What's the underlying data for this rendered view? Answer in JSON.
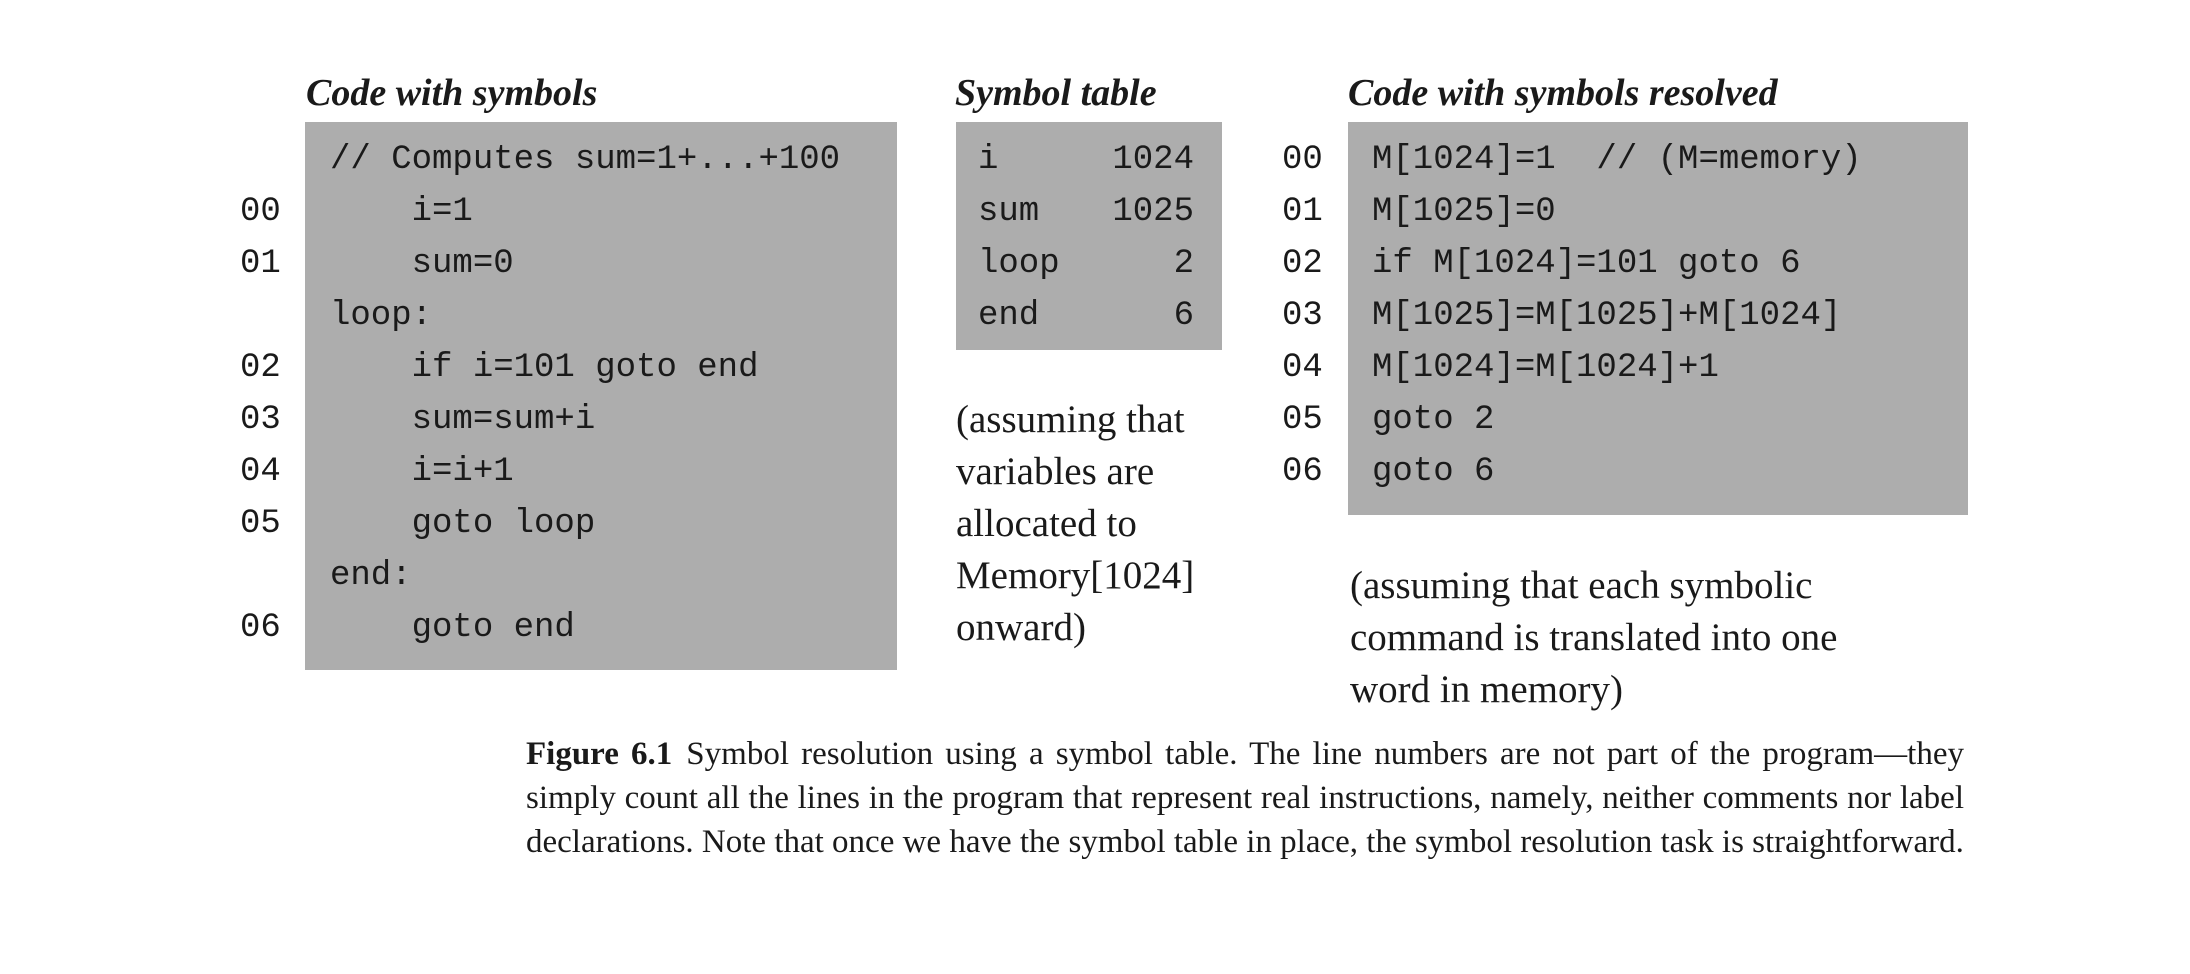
{
  "headings": {
    "code_with_symbols": "Code with symbols",
    "symbol_table": "Symbol table",
    "code_resolved": "Code with symbols resolved"
  },
  "code_with_symbols": {
    "lines": [
      {
        "num": "",
        "text": "// Computes sum=1+...+100"
      },
      {
        "num": "00",
        "text": "    i=1"
      },
      {
        "num": "01",
        "text": "    sum=0"
      },
      {
        "num": "",
        "text": "loop:"
      },
      {
        "num": "02",
        "text": "    if i=101 goto end"
      },
      {
        "num": "03",
        "text": "    sum=sum+i"
      },
      {
        "num": "04",
        "text": "    i=i+1"
      },
      {
        "num": "05",
        "text": "    goto loop"
      },
      {
        "num": "",
        "text": "end:"
      },
      {
        "num": "06",
        "text": "    goto end"
      }
    ]
  },
  "symbol_table": {
    "rows": [
      {
        "symbol": "i",
        "value": "1024"
      },
      {
        "symbol": "sum",
        "value": "1025"
      },
      {
        "symbol": "loop",
        "value": "2"
      },
      {
        "symbol": "end",
        "value": "6"
      }
    ],
    "note_lines": [
      "(assuming that",
      "variables are",
      "allocated to",
      "Memory[1024]",
      "onward)"
    ]
  },
  "code_resolved": {
    "lines": [
      {
        "num": "00",
        "text": "M[1024]=1  // (M=memory)"
      },
      {
        "num": "01",
        "text": "M[1025]=0"
      },
      {
        "num": "02",
        "text": "if M[1024]=101 goto 6"
      },
      {
        "num": "03",
        "text": "M[1025]=M[1025]+M[1024]"
      },
      {
        "num": "04",
        "text": "M[1024]=M[1024]+1"
      },
      {
        "num": "05",
        "text": "goto 2"
      },
      {
        "num": "06",
        "text": "goto 6"
      }
    ],
    "note_lines": [
      "(assuming that each symbolic",
      "command is translated into one",
      "word in memory)"
    ]
  },
  "caption": {
    "label": "Figure 6.1",
    "text": "Symbol resolution using a symbol table. The line numbers are not part of the program—they simply count all the lines in the program that represent real instructions, namely, neither comments nor label declarations. Note that once we have the symbol table in place, the symbol resolution task is straightforward."
  }
}
